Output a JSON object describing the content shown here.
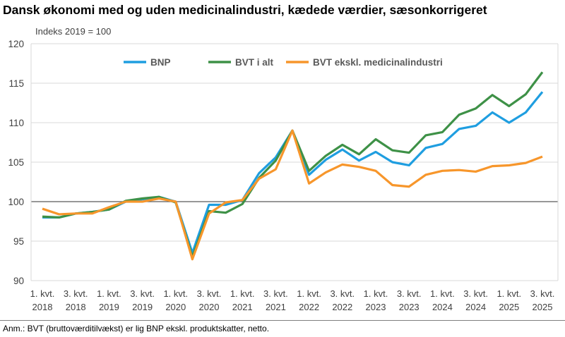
{
  "chart_data": {
    "type": "line",
    "title": "Dansk økonomi med og uden medicinalindustri, kædede værdier, sæsonkorrigeret",
    "ylabel": "Indeks 2019 = 100",
    "note": "Anm.: BVT (bruttoværditilvækst) er lig BNP ekskl. produktskatter, netto.",
    "ylim": [
      90,
      120
    ],
    "yticks": [
      90,
      95,
      100,
      105,
      110,
      115,
      120
    ],
    "grid": true,
    "legend": "top",
    "x": [
      "1. kvt. 2018",
      "2. kvt. 2018",
      "3. kvt. 2018",
      "4. kvt. 2018",
      "1. kvt. 2019",
      "2. kvt. 2019",
      "3. kvt. 2019",
      "4. kvt. 2019",
      "1. kvt. 2020",
      "2. kvt. 2020",
      "3. kvt. 2020",
      "4. kvt. 2020",
      "1. kvt. 2021",
      "2. kvt. 2021",
      "3. kvt. 2021",
      "4. kvt. 2021",
      "1. kvt. 2022",
      "2. kvt. 2022",
      "3. kvt. 2022",
      "4. kvt. 2022",
      "1. kvt. 2023",
      "2. kvt. 2023",
      "3. kvt. 2023",
      "4. kvt. 2023",
      "1. kvt. 2024",
      "2. kvt. 2024",
      "3. kvt. 2024",
      "4. kvt. 2024",
      "1. kvt. 2025",
      "2. kvt. 2025",
      "3. kvt. 2025"
    ],
    "xtick_labels": [
      [
        "1. kvt.",
        "2018"
      ],
      [
        "3. kvt.",
        "2018"
      ],
      [
        "1. kvt.",
        "2019"
      ],
      [
        "3. kvt.",
        "2019"
      ],
      [
        "1. kvt.",
        "2020"
      ],
      [
        "3. kvt.",
        "2020"
      ],
      [
        "1. kvt.",
        "2021"
      ],
      [
        "3. kvt.",
        "2021"
      ],
      [
        "1. kvt.",
        "2022"
      ],
      [
        "3. kvt.",
        "2022"
      ],
      [
        "1. kvt.",
        "2023"
      ],
      [
        "3. kvt.",
        "2023"
      ],
      [
        "1. kvt.",
        "2024"
      ],
      [
        "3. kvt.",
        "2024"
      ],
      [
        "1. kvt.",
        "2025"
      ],
      [
        "3. kvt.",
        "2025"
      ]
    ],
    "series": [
      {
        "name": "BNP",
        "color": "#1f9ee0",
        "values": [
          98.0,
          98.0,
          98.5,
          98.7,
          99.0,
          100.0,
          100.3,
          100.6,
          100.0,
          93.5,
          99.6,
          99.6,
          100.2,
          103.6,
          105.6,
          109.0,
          103.4,
          105.3,
          106.6,
          105.2,
          106.3,
          105.0,
          104.6,
          106.8,
          107.3,
          109.2,
          109.6,
          111.3,
          110.0,
          111.3,
          113.9
        ]
      },
      {
        "name": "BVT i alt",
        "color": "#3e9147",
        "values": [
          98.1,
          98.0,
          98.5,
          98.7,
          99.0,
          100.1,
          100.4,
          100.6,
          99.9,
          93.0,
          98.8,
          98.6,
          99.7,
          103.0,
          105.2,
          109.0,
          103.9,
          105.8,
          107.2,
          106.0,
          107.9,
          106.5,
          106.2,
          108.4,
          108.8,
          111.0,
          111.8,
          113.5,
          112.1,
          113.6,
          116.4
        ]
      },
      {
        "name": "BVT ekskl. medicinalindustri",
        "color": "#f7962b",
        "values": [
          99.1,
          98.4,
          98.5,
          98.5,
          99.3,
          100.0,
          100.0,
          100.4,
          100.0,
          92.7,
          98.5,
          99.9,
          100.2,
          102.9,
          104.1,
          109.0,
          102.3,
          103.7,
          104.7,
          104.4,
          103.9,
          102.1,
          101.9,
          103.4,
          103.9,
          104.0,
          103.8,
          104.5,
          104.6,
          104.9,
          105.7
        ]
      }
    ]
  }
}
